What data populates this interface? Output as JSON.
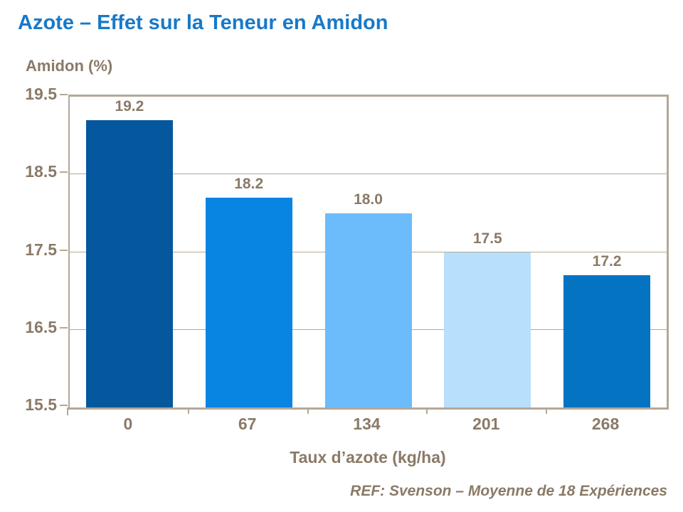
{
  "title": "Azote – Effet sur la Teneur en Amidon",
  "footer": "REF: Svenson – Moyenne de 18 Expériences",
  "colors": {
    "title_blue": "#1879C8",
    "axis_text_brown": "#8A7A67",
    "axis_line_tan": "#B4A896",
    "background": "#FFFFFF"
  },
  "chart_data": {
    "type": "bar",
    "title": "Azote – Effet sur la Teneur en Amidon",
    "xlabel": "Taux d’azote (kg/ha)",
    "ylabel": "Amidon (%)",
    "categories": [
      "0",
      "67",
      "134",
      "201",
      "268"
    ],
    "values": [
      19.2,
      18.2,
      18.0,
      17.5,
      17.2
    ],
    "value_labels": [
      "19.2",
      "18.2",
      "18.0",
      "17.5",
      "17.2"
    ],
    "bar_colors": [
      "#05589D",
      "#0884E2",
      "#6CBCFC",
      "#B8DFFC",
      "#0473C2"
    ],
    "ylim": [
      15.5,
      19.5
    ],
    "yticks": [
      "19.5",
      "18.5",
      "17.5",
      "16.5",
      "15.5"
    ],
    "grid": true,
    "legend": false,
    "annotation": "REF: Svenson – Moyenne de 18 Expériences"
  }
}
